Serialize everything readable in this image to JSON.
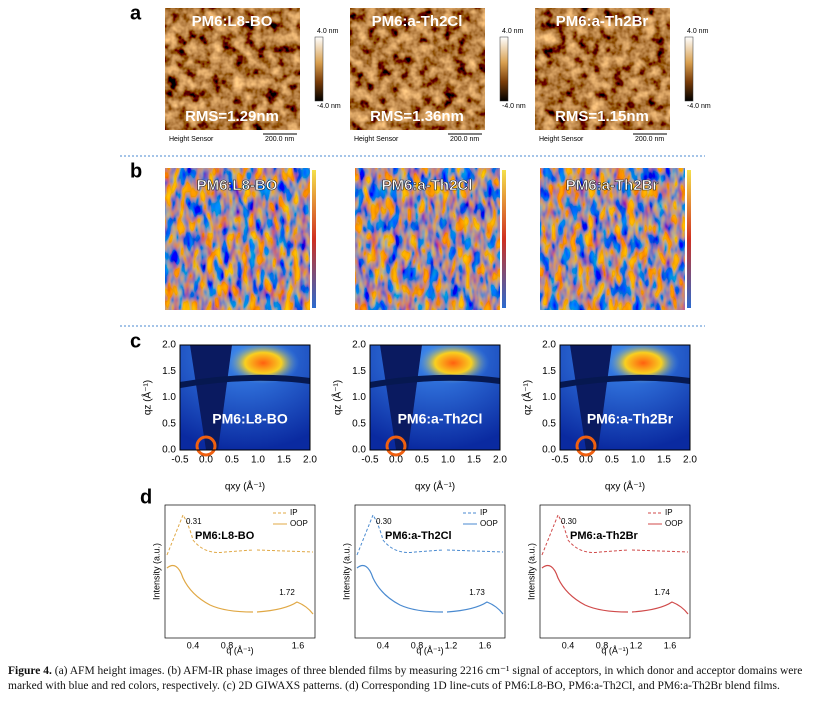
{
  "panel_a": {
    "label": "a",
    "images": [
      {
        "title": "PM6:L8-BO",
        "rms": "RMS=1.29nm"
      },
      {
        "title": "PM6:a-Th2Cl",
        "rms": "RMS=1.36nm"
      },
      {
        "title": "PM6:a-Th2Br",
        "rms": "RMS=1.15nm"
      }
    ],
    "scale_top": "4.0 nm",
    "scale_bottom": "-4.0 nm",
    "sensor": "Height Sensor",
    "scale_bar": "200.0 nm"
  },
  "panel_b": {
    "label": "b",
    "images": [
      "PM6:L8-BO",
      "PM6:a-Th2Cl",
      "PM6:a-Th2Br"
    ]
  },
  "panel_c": {
    "label": "c",
    "plots": [
      "PM6:L8-BO",
      "PM6:a-Th2Cl",
      "PM6:a-Th2Br"
    ],
    "xticks": [
      "-0.5",
      "0.0",
      "0.5",
      "1.0",
      "1.5",
      "2.0"
    ],
    "yticks": [
      "0.0",
      "0.5",
      "1.0",
      "1.5",
      "2.0"
    ],
    "xlabel": "qxy (Å⁻¹)",
    "ylabel": "qz (Å⁻¹)"
  },
  "panel_d": {
    "label": "d",
    "plots": [
      {
        "title": "PM6:L8-BO",
        "peak_low": "0.31",
        "peak_high": "1.72",
        "xticks": [
          "0.4",
          "0.8",
          "1.6"
        ]
      },
      {
        "title": "PM6:a-Th2Cl",
        "peak_low": "0.30",
        "peak_high": "1.73",
        "xticks": [
          "0.4",
          "0.8",
          "1.2",
          "1.6"
        ]
      },
      {
        "title": "PM6:a-Th2Br",
        "peak_low": "0.30",
        "peak_high": "1.74",
        "xticks": [
          "0.4",
          "0.8",
          "1.2",
          "1.6"
        ]
      }
    ],
    "legend": [
      "IP",
      "OOP"
    ],
    "ylabel": "Intensity (a.u.)",
    "xlabel": "q (Å⁻¹)"
  },
  "caption": {
    "figure": "Figure 4.",
    "text": "(a) AFM height images. (b) AFM-IR phase images of three blended films by measuring 2216 cm⁻¹ signal of acceptors, in which donor and acceptor domains were marked with blue and red colors, respectively. (c) 2D GIWAXS patterns. (d) Corresponding 1D line-cuts of PM6:L8-BO, PM6:a-Th2Cl, and PM6:a-Th2Br blend films."
  }
}
